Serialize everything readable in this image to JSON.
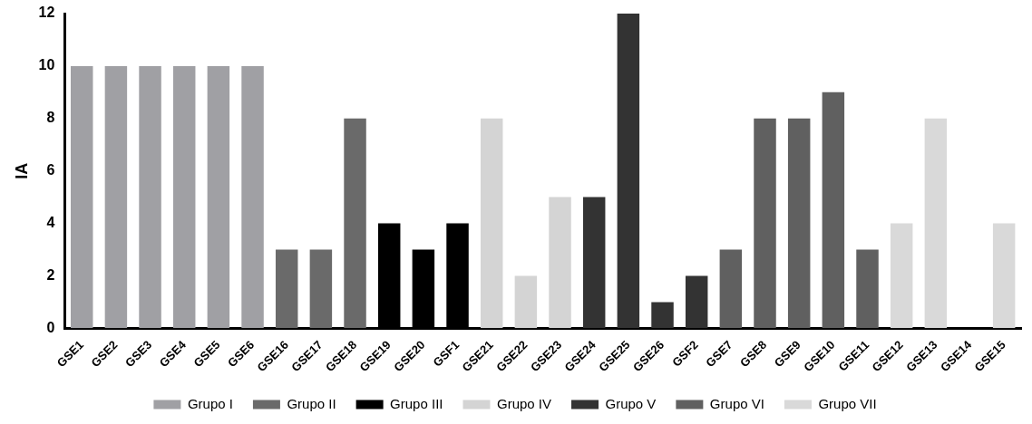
{
  "chart_data": {
    "type": "bar",
    "ylabel": "IA",
    "categories": [
      "GSE1",
      "GSE2",
      "GSE3",
      "GSE4",
      "GSE5",
      "GSE6",
      "GSE16",
      "GSE17",
      "GSE18",
      "GSE19",
      "GSE20",
      "GSF1",
      "GSE21",
      "GSE22",
      "GSE23",
      "GSE24",
      "GSE25",
      "GSE26",
      "GSF2",
      "GSE7",
      "GSE8",
      "GSE9",
      "GSE10",
      "GSE11",
      "GSE12",
      "GSE13",
      "GSE14",
      "GSE15"
    ],
    "series": [
      {
        "name": "Grupo I",
        "color": "#a0a0a4",
        "values": [
          10,
          10,
          10,
          10,
          10,
          10,
          null,
          null,
          null,
          null,
          null,
          null,
          null,
          null,
          null,
          null,
          null,
          null,
          null,
          null,
          null,
          null,
          null,
          null,
          null,
          null,
          null,
          null
        ]
      },
      {
        "name": "Grupo II",
        "color": "#6a6a6a",
        "values": [
          null,
          null,
          null,
          null,
          null,
          null,
          3,
          3,
          8,
          null,
          null,
          null,
          null,
          null,
          null,
          null,
          null,
          null,
          null,
          null,
          null,
          null,
          null,
          null,
          null,
          null,
          null,
          null
        ]
      },
      {
        "name": "Grupo III",
        "color": "#000000",
        "values": [
          null,
          null,
          null,
          null,
          null,
          null,
          null,
          null,
          null,
          4,
          3,
          4,
          null,
          null,
          null,
          null,
          null,
          null,
          null,
          null,
          null,
          null,
          null,
          null,
          null,
          null,
          null,
          null
        ]
      },
      {
        "name": "Grupo IV",
        "color": "#d4d4d4",
        "values": [
          null,
          null,
          null,
          null,
          null,
          null,
          null,
          null,
          null,
          null,
          null,
          null,
          8,
          2,
          5,
          null,
          null,
          null,
          null,
          null,
          null,
          null,
          null,
          null,
          null,
          null,
          null,
          null
        ]
      },
      {
        "name": "Grupo V",
        "color": "#333333",
        "values": [
          null,
          null,
          null,
          null,
          null,
          null,
          null,
          null,
          null,
          null,
          null,
          null,
          null,
          null,
          null,
          5,
          12,
          1,
          2,
          null,
          null,
          null,
          null,
          null,
          null,
          null,
          null,
          null
        ]
      },
      {
        "name": "Grupo VI",
        "color": "#606060",
        "values": [
          null,
          null,
          null,
          null,
          null,
          null,
          null,
          null,
          null,
          null,
          null,
          null,
          null,
          null,
          null,
          null,
          null,
          null,
          null,
          3,
          8,
          8,
          9,
          3,
          null,
          null,
          null,
          null
        ]
      },
      {
        "name": "Grupo VII",
        "color": "#d9d9d9",
        "values": [
          null,
          null,
          null,
          null,
          null,
          null,
          null,
          null,
          null,
          null,
          null,
          null,
          null,
          null,
          null,
          null,
          null,
          null,
          null,
          null,
          null,
          null,
          null,
          null,
          4,
          8,
          0,
          4
        ]
      }
    ],
    "ylim": [
      0,
      12
    ],
    "yticks": [
      0,
      2,
      4,
      6,
      8,
      10,
      12
    ],
    "grid": false,
    "legend": "bottom"
  }
}
